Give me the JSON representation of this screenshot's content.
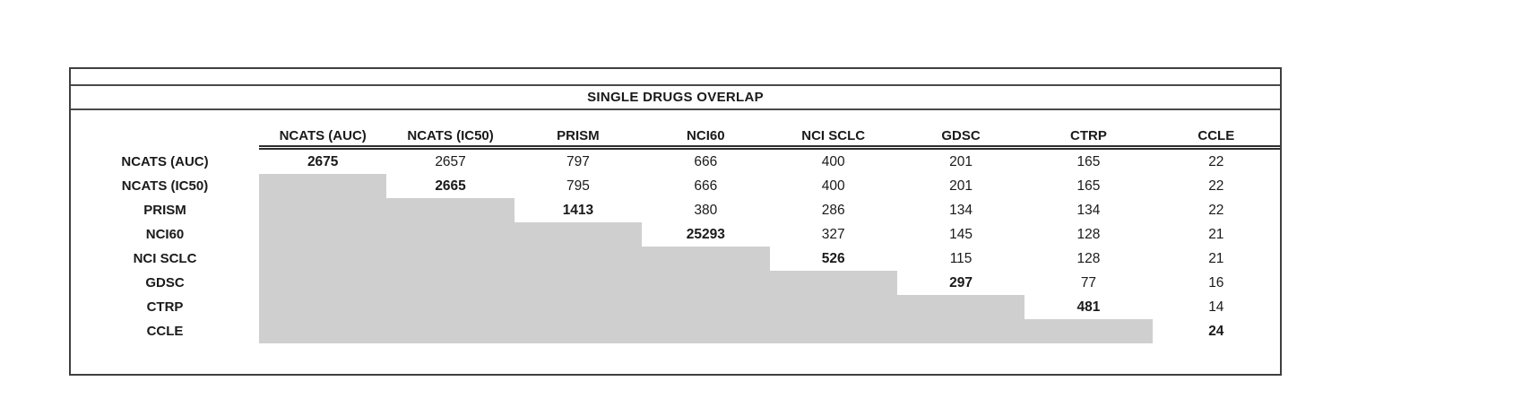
{
  "title": "SINGLE DRUGS OVERLAP",
  "chart_data": {
    "type": "table",
    "title": "SINGLE DRUGS OVERLAP",
    "row_labels": [
      "NCATS (AUC)",
      "NCATS (IC50)",
      "PRISM",
      "NCI60",
      "NCI SCLC",
      "GDSC",
      "CTRP",
      "CCLE"
    ],
    "column_labels": [
      "NCATS (AUC)",
      "NCATS (IC50)",
      "PRISM",
      "NCI60",
      "NCI SCLC",
      "GDSC",
      "CTRP",
      "CCLE"
    ],
    "matrix": [
      [
        2675,
        2657,
        797,
        666,
        400,
        201,
        165,
        22
      ],
      [
        null,
        2665,
        795,
        666,
        400,
        201,
        165,
        22
      ],
      [
        null,
        null,
        1413,
        380,
        286,
        134,
        134,
        22
      ],
      [
        null,
        null,
        null,
        25293,
        327,
        145,
        128,
        21
      ],
      [
        null,
        null,
        null,
        null,
        526,
        115,
        128,
        21
      ],
      [
        null,
        null,
        null,
        null,
        null,
        297,
        77,
        16
      ],
      [
        null,
        null,
        null,
        null,
        null,
        null,
        481,
        14
      ],
      [
        null,
        null,
        null,
        null,
        null,
        null,
        null,
        24
      ]
    ],
    "diagonal_bold": true,
    "lower_triangle_fill_color": "#d0cfcf",
    "layout": {
      "header_rule": "double",
      "border_color": "#3f3f3f",
      "text_color": "#1a1a1a"
    }
  }
}
